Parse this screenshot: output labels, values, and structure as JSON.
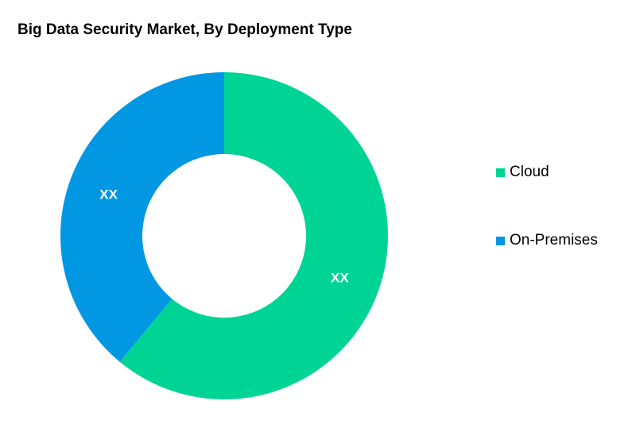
{
  "colors": {
    "cloud": "#00D495",
    "on_premises": "#0297E3",
    "label_text": "#ffffff"
  },
  "chart_data": {
    "type": "pie",
    "subtype": "donut",
    "title": "Big Data Security Market, By Deployment Type",
    "categories": [
      "Cloud",
      "On-Premises"
    ],
    "values": [
      61,
      39
    ],
    "value_labels": [
      "XX",
      "XX"
    ],
    "colors": [
      "#00D495",
      "#0297E3"
    ],
    "legend_position": "right",
    "start": "top, clockwise"
  }
}
